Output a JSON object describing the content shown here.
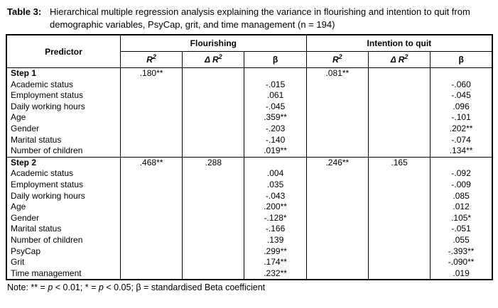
{
  "title": {
    "label": "Table 3:",
    "text": "Hierarchical multiple regression analysis explaining the variance in flourishing and intention to quit from demographic variables, PsyCap, grit, and time management (n = 194)"
  },
  "table": {
    "headers": {
      "predictor": "Predictor",
      "group1": "Flourishing",
      "group2": "Intention to quit",
      "sub": [
        "R",
        "Δ R",
        "β",
        "R",
        "Δ R",
        "β"
      ],
      "sub_sup": [
        "2",
        "2",
        "",
        "2",
        "2",
        ""
      ]
    },
    "rows": [
      {
        "label": "Step 1",
        "section": true,
        "cells": [
          ".180**",
          "",
          "",
          ".081**",
          "",
          ""
        ]
      },
      {
        "label": "Academic status",
        "section": false,
        "cells": [
          "",
          "",
          "-.015",
          "",
          "",
          "-.060"
        ]
      },
      {
        "label": "Employment status",
        "section": false,
        "cells": [
          "",
          "",
          ".061",
          "",
          "",
          "-.045"
        ]
      },
      {
        "label": "Daily working hours",
        "section": false,
        "cells": [
          "",
          "",
          "-.045",
          "",
          "",
          ".096"
        ]
      },
      {
        "label": "Age",
        "section": false,
        "cells": [
          "",
          "",
          ".359**",
          "",
          "",
          "-.101"
        ]
      },
      {
        "label": "Gender",
        "section": false,
        "cells": [
          "",
          "",
          "-.203",
          "",
          "",
          ".202**"
        ]
      },
      {
        "label": "Marital status",
        "section": false,
        "cells": [
          "",
          "",
          "-.140",
          "",
          "",
          "-.074"
        ]
      },
      {
        "label": "Number of children",
        "section": false,
        "cells": [
          "",
          "",
          ".019**",
          "",
          "",
          ".134**"
        ]
      },
      {
        "label": "Step 2",
        "section": true,
        "cells": [
          ".468**",
          ".288",
          "",
          ".246**",
          ".165",
          ""
        ]
      },
      {
        "label": "Academic status",
        "section": false,
        "cells": [
          "",
          "",
          ".004",
          "",
          "",
          "-.092"
        ]
      },
      {
        "label": "Employment status",
        "section": false,
        "cells": [
          "",
          "",
          ".035",
          "",
          "",
          "-.009"
        ]
      },
      {
        "label": "Daily working hours",
        "section": false,
        "cells": [
          "",
          "",
          "-.043",
          "",
          "",
          ".085"
        ]
      },
      {
        "label": "Age",
        "section": false,
        "cells": [
          "",
          "",
          ".200**",
          "",
          "",
          ".012"
        ]
      },
      {
        "label": "Gender",
        "section": false,
        "cells": [
          "",
          "",
          "-.128*",
          "",
          "",
          ".105*"
        ]
      },
      {
        "label": "Marital status",
        "section": false,
        "cells": [
          "",
          "",
          "-.166",
          "",
          "",
          "-.051"
        ]
      },
      {
        "label": "Number of children",
        "section": false,
        "cells": [
          "",
          "",
          ".139",
          "",
          "",
          ".055"
        ]
      },
      {
        "label": "PsyCap",
        "section": false,
        "cells": [
          "",
          "",
          ".299**",
          "",
          "",
          "-.393**"
        ]
      },
      {
        "label": "Grit",
        "section": false,
        "cells": [
          "",
          "",
          ".174**",
          "",
          "",
          "-.090**"
        ]
      },
      {
        "label": "Time management",
        "section": false,
        "cells": [
          "",
          "",
          ".232**",
          "",
          "",
          ".019"
        ]
      }
    ]
  },
  "note": {
    "parts": [
      "Note: ** = ",
      "p",
      " < 0.01; * = ",
      "p",
      " < 0.05; β = standardised Beta coefficient"
    ]
  }
}
